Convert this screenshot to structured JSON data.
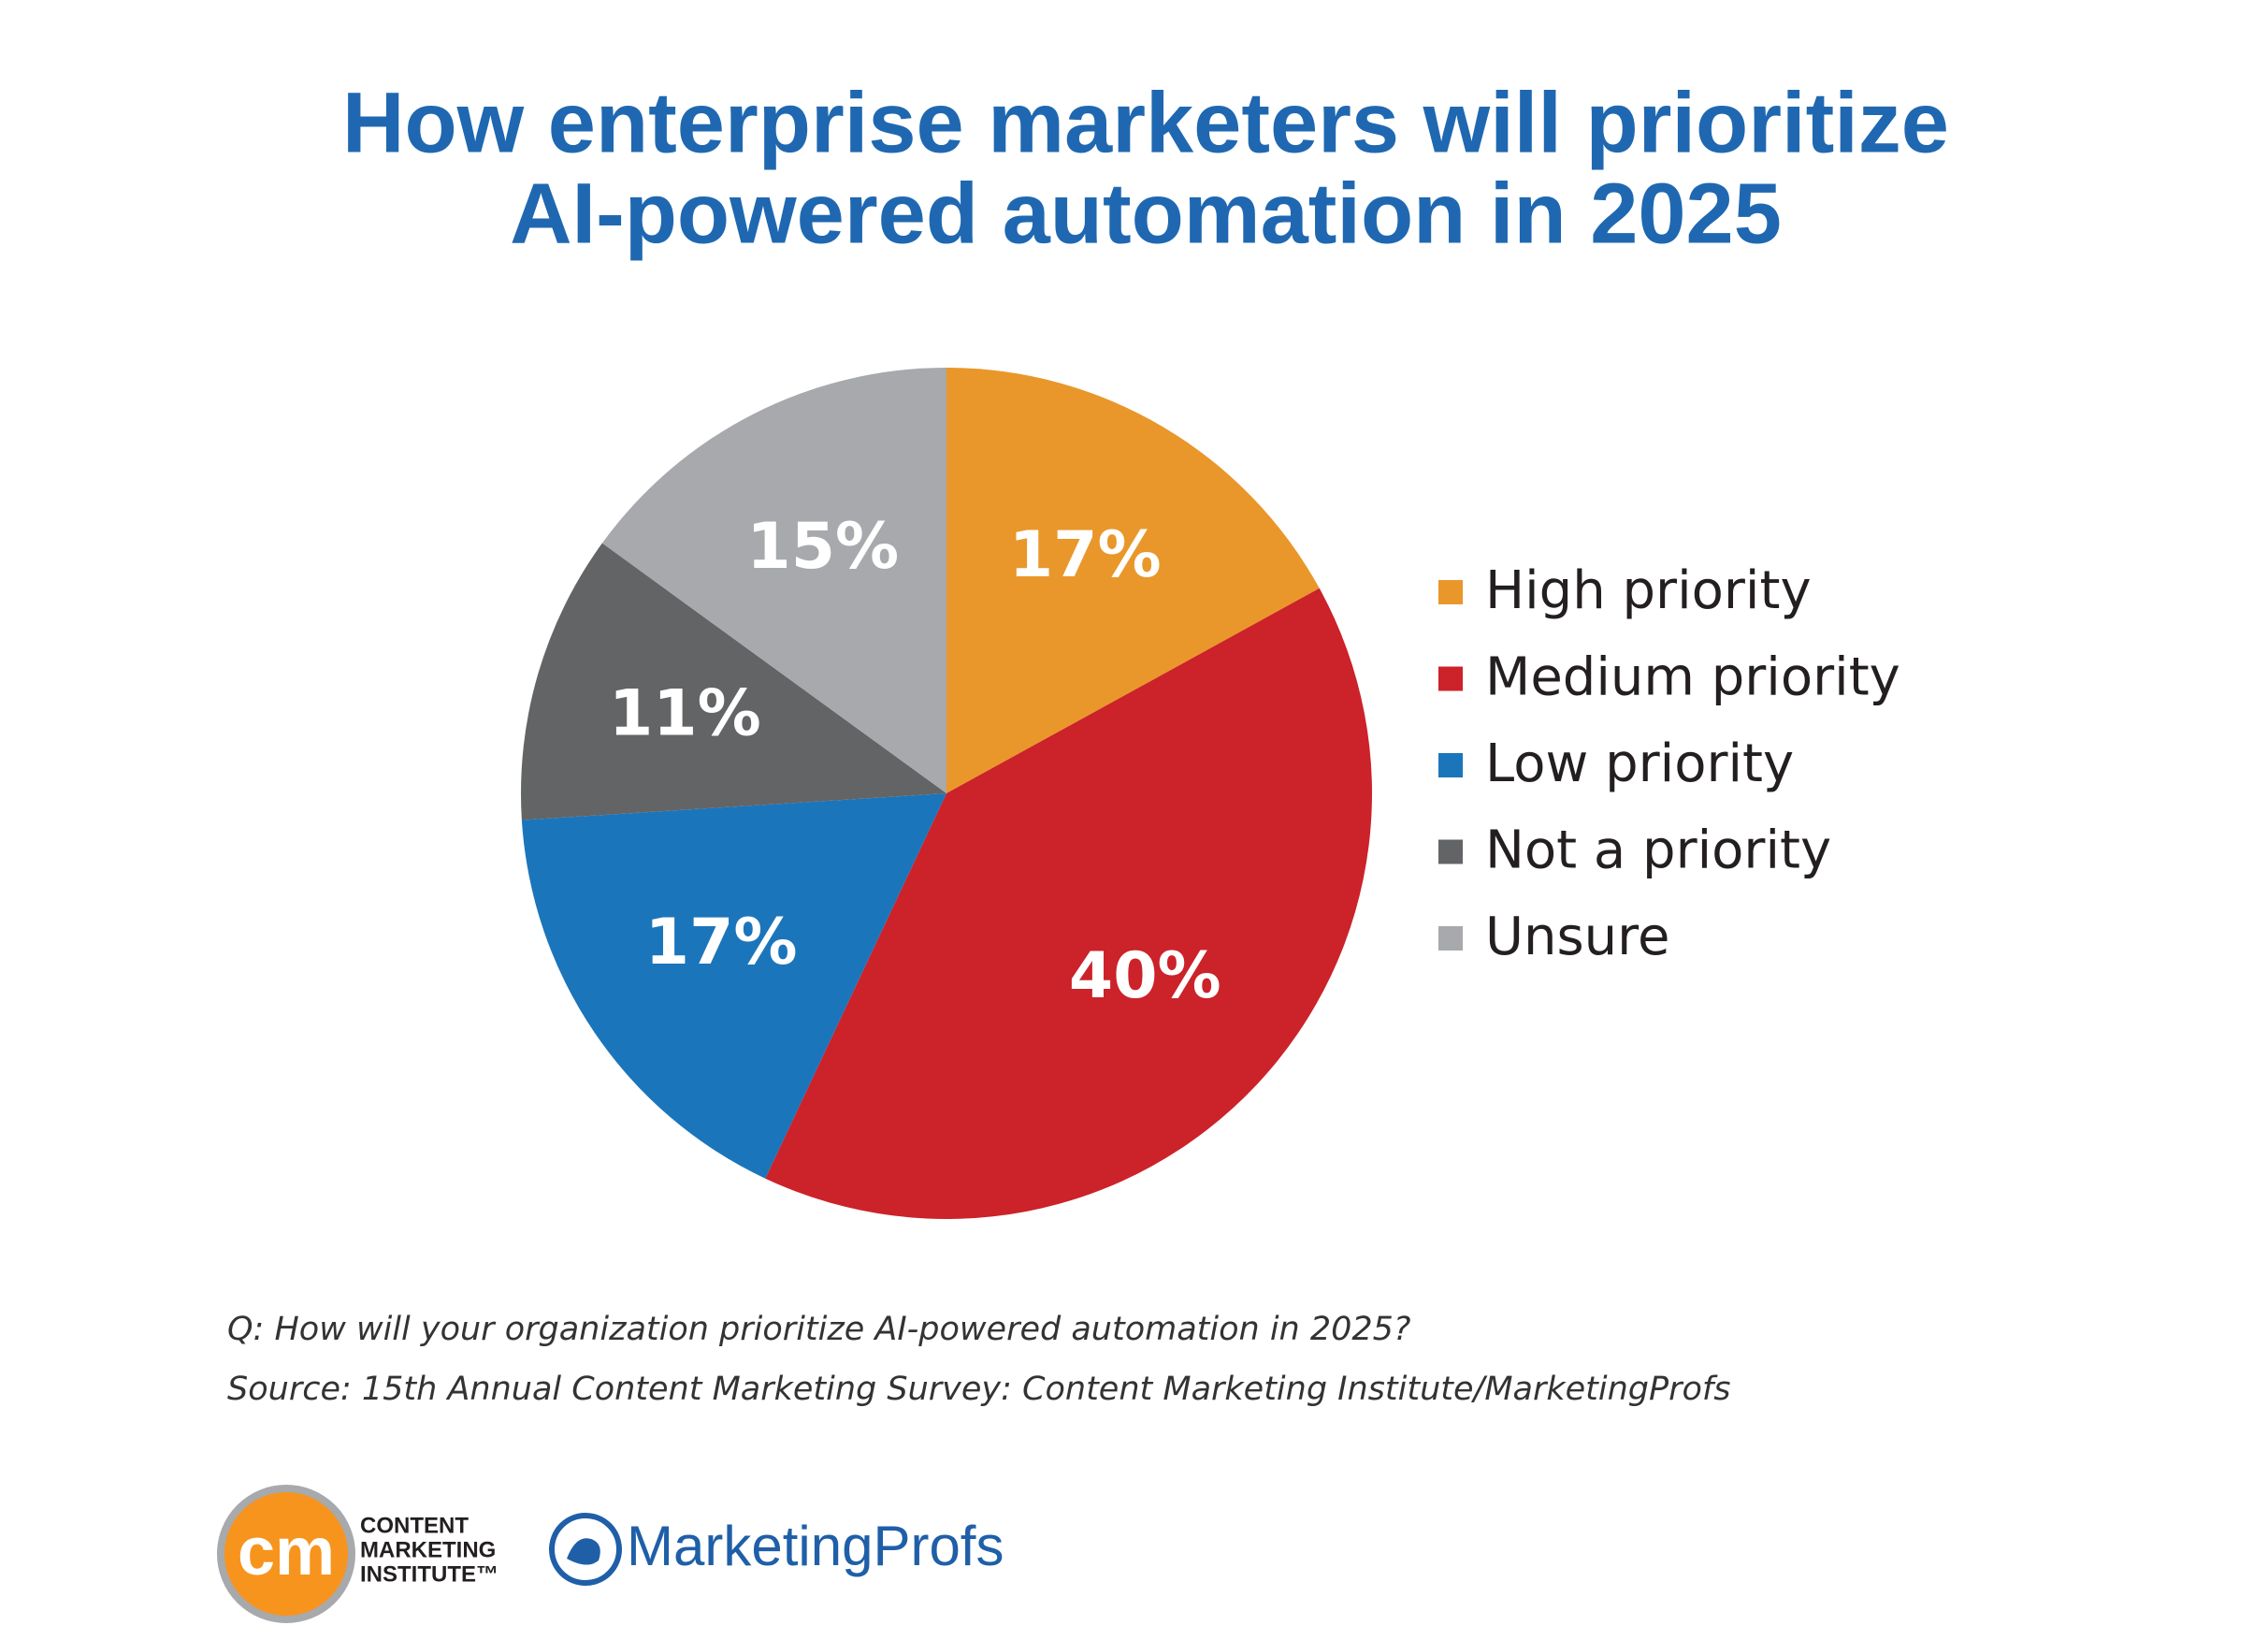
{
  "chart_data": {
    "type": "pie",
    "title": [
      "How enterprise marketers will prioritize",
      "AI-powered automation in 2025"
    ],
    "categories": [
      "High priority",
      "Medium priority",
      "Low priority",
      "Not a priority",
      "Unsure"
    ],
    "values": [
      17,
      40,
      17,
      11,
      15
    ],
    "value_labels": [
      "17%",
      "40%",
      "17%",
      "11%",
      "15%"
    ],
    "colors": [
      "#E9972A",
      "#CC2229",
      "#1B75BB",
      "#636466",
      "#A7A9AC"
    ],
    "legend": "right",
    "question": "Q: How will your organization prioritize AI-powered automation in 2025?",
    "source": "Source: 15th Annual Content Marketing Survey: Content Marketing Institute/MarketingProfs"
  },
  "logos": {
    "cmi_mark": "cm",
    "cmi_text": [
      "CONTENT",
      "MARKETING",
      "INSTITUTE™"
    ],
    "marketingprofs": "MarketingProfs"
  }
}
